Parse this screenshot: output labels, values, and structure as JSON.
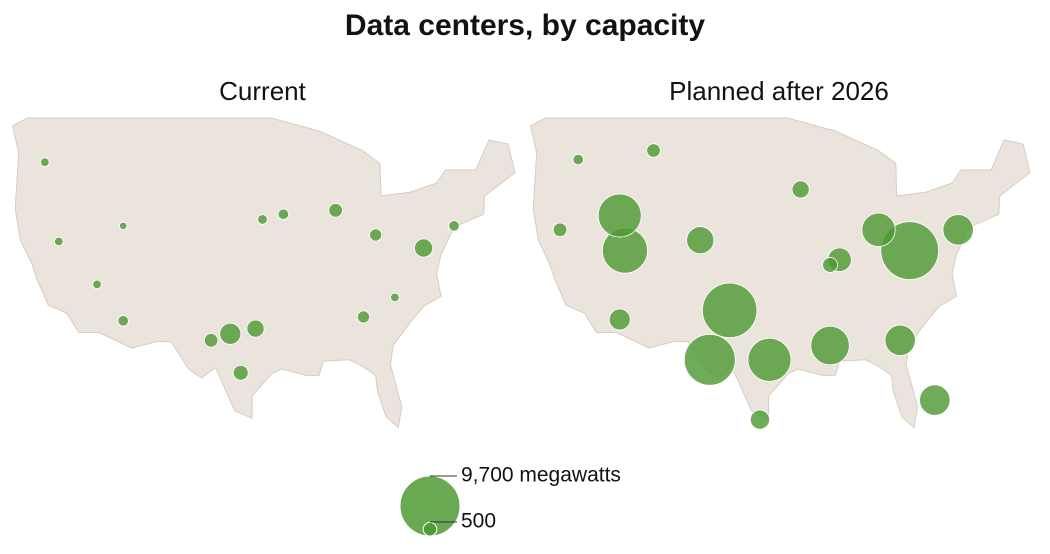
{
  "title": "Data centers, by capacity",
  "color": "#4f9a34",
  "maps": [
    {
      "title": "Current",
      "points": [
        {
          "lon": -99.7,
          "lat": 32.4,
          "mw": 1200
        },
        {
          "lon": -96.8,
          "lat": 32.8,
          "mw": 800
        },
        {
          "lon": -101.9,
          "lat": 31.9,
          "mw": 500
        },
        {
          "lon": -98.5,
          "lat": 29.4,
          "mw": 600
        },
        {
          "lon": -112.0,
          "lat": 33.4,
          "mw": 300
        },
        {
          "lon": -77.5,
          "lat": 39.0,
          "mw": 900
        },
        {
          "lon": -87.6,
          "lat": 41.9,
          "mw": 500
        },
        {
          "lon": -84.4,
          "lat": 33.7,
          "mw": 400
        },
        {
          "lon": -83.0,
          "lat": 40.0,
          "mw": 400
        },
        {
          "lon": -121.0,
          "lat": 45.6,
          "mw": 200
        },
        {
          "lon": -93.6,
          "lat": 41.6,
          "mw": 300
        },
        {
          "lon": -96.0,
          "lat": 41.2,
          "mw": 250
        },
        {
          "lon": -112.0,
          "lat": 40.7,
          "mw": 150
        },
        {
          "lon": -119.4,
          "lat": 39.5,
          "mw": 200
        },
        {
          "lon": -115.0,
          "lat": 36.2,
          "mw": 200
        },
        {
          "lon": -74.0,
          "lat": 40.7,
          "mw": 300
        },
        {
          "lon": -80.8,
          "lat": 35.2,
          "mw": 200
        }
      ]
    },
    {
      "title": "Planned after 2026",
      "points": [
        {
          "lon": -114.4,
          "lat": 41.5,
          "mw": 5000
        },
        {
          "lon": -113.8,
          "lat": 38.8,
          "mw": 5500
        },
        {
          "lon": -105.1,
          "lat": 39.6,
          "mw": 2000
        },
        {
          "lon": -101.7,
          "lat": 34.2,
          "mw": 8000
        },
        {
          "lon": -104.0,
          "lat": 30.4,
          "mw": 7000
        },
        {
          "lon": -97.1,
          "lat": 30.4,
          "mw": 5000
        },
        {
          "lon": -90.1,
          "lat": 31.5,
          "mw": 4000
        },
        {
          "lon": -80.9,
          "lat": 38.8,
          "mw": 9000
        },
        {
          "lon": -78.0,
          "lat": 27.3,
          "mw": 2500
        },
        {
          "lon": -98.2,
          "lat": 25.8,
          "mw": 1000
        },
        {
          "lon": -114.4,
          "lat": 33.5,
          "mw": 1200
        },
        {
          "lon": -84.5,
          "lat": 40.4,
          "mw": 3000
        },
        {
          "lon": -75.3,
          "lat": 40.4,
          "mw": 2500
        },
        {
          "lon": -89.0,
          "lat": 38.1,
          "mw": 1500
        },
        {
          "lon": -93.5,
          "lat": 43.5,
          "mw": 800
        },
        {
          "lon": -110.5,
          "lat": 46.5,
          "mw": 500
        },
        {
          "lon": -82.0,
          "lat": 31.9,
          "mw": 2500
        },
        {
          "lon": -119.2,
          "lat": 45.8,
          "mw": 300
        },
        {
          "lon": -90.1,
          "lat": 37.7,
          "mw": 600
        },
        {
          "lon": -121.3,
          "lat": 40.4,
          "mw": 500
        }
      ]
    }
  ],
  "legend": {
    "sizes": [
      {
        "value": 9700,
        "label": "9,700 megawatts"
      },
      {
        "value": 500,
        "label": "500"
      }
    ]
  }
}
